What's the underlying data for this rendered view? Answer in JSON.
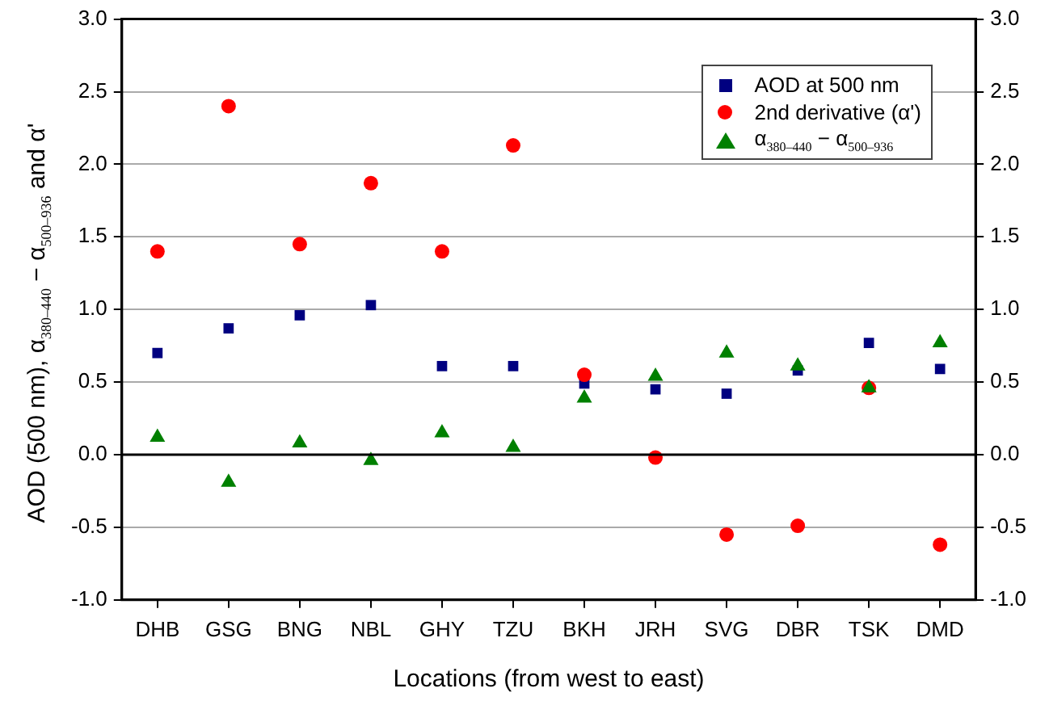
{
  "chart_data": {
    "type": "scatter",
    "xlabel": "Locations (from west to east)",
    "ylabel": "AOD (500 nm), α$_{380–440}$ − α$_{500–936}$ and α'",
    "categories": [
      "DHB",
      "GSG",
      "BNG",
      "NBL",
      "GHY",
      "TZU",
      "BKH",
      "JRH",
      "SVG",
      "DBR",
      "TSK",
      "DMD"
    ],
    "series": [
      {
        "name": "AOD at 500 nm",
        "color": "#000080",
        "marker": "square",
        "values": [
          0.7,
          0.87,
          0.96,
          1.03,
          0.61,
          0.61,
          0.49,
          0.45,
          0.42,
          0.58,
          0.77,
          0.59
        ]
      },
      {
        "name": "2nd derivative (α')",
        "color": "#ff0000",
        "marker": "circle",
        "values": [
          1.4,
          2.4,
          1.45,
          1.87,
          1.4,
          2.13,
          0.55,
          -0.02,
          -0.55,
          -0.49,
          0.46,
          -0.62
        ]
      },
      {
        "name": "α$_{380–440}$ − α$_{500–936}$",
        "color": "#008000",
        "marker": "triangle",
        "values": [
          0.12,
          -0.19,
          0.08,
          -0.04,
          0.15,
          0.05,
          0.39,
          0.54,
          0.7,
          0.61,
          0.46,
          0.77
        ]
      }
    ],
    "ylim": [
      -1,
      3
    ],
    "yticks": [
      {
        "value": -1,
        "label": "-1.0"
      },
      -0.5,
      {
        "value": 0,
        "label": "0.0"
      },
      0.5,
      {
        "value": 1,
        "label": "1.0"
      },
      1.5,
      {
        "value": 2,
        "label": "2.0"
      },
      2.5,
      {
        "value": 3,
        "label": "3.0"
      }
    ],
    "y2lim": [
      -1,
      3
    ],
    "y2ticks": [
      {
        "value": -1,
        "label": "-1.0"
      },
      -0.5,
      {
        "value": 0,
        "label": "0.0"
      },
      0.5,
      {
        "value": 1,
        "label": "1.0"
      },
      1.5,
      {
        "value": 2,
        "label": "2.0"
      },
      2.5,
      {
        "value": 3,
        "label": "3.0"
      }
    ],
    "ref_lines": [
      {
        "axis": "y",
        "value": 0,
        "color": "#000000",
        "line_style": "solid"
      }
    ],
    "grid": "y",
    "legend": "top right"
  }
}
